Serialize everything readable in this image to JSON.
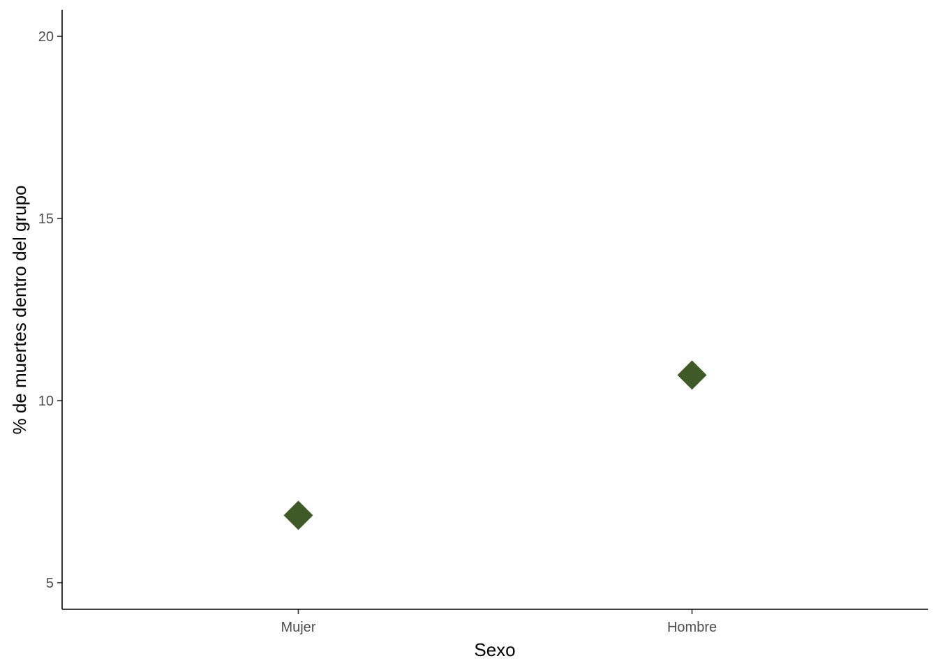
{
  "chart_data": {
    "type": "scatter",
    "title": "",
    "xlabel": "Sexo",
    "ylabel": "% de muertes dentro del grupo",
    "categories": [
      "Mujer",
      "Hombre"
    ],
    "values": [
      6.85,
      10.7
    ],
    "y_ticks": [
      5,
      10,
      15,
      20
    ],
    "ylim": [
      4.27,
      20.73
    ],
    "marker": "diamond",
    "point_color": "#3F5A26",
    "grid": false,
    "legend": "none"
  }
}
